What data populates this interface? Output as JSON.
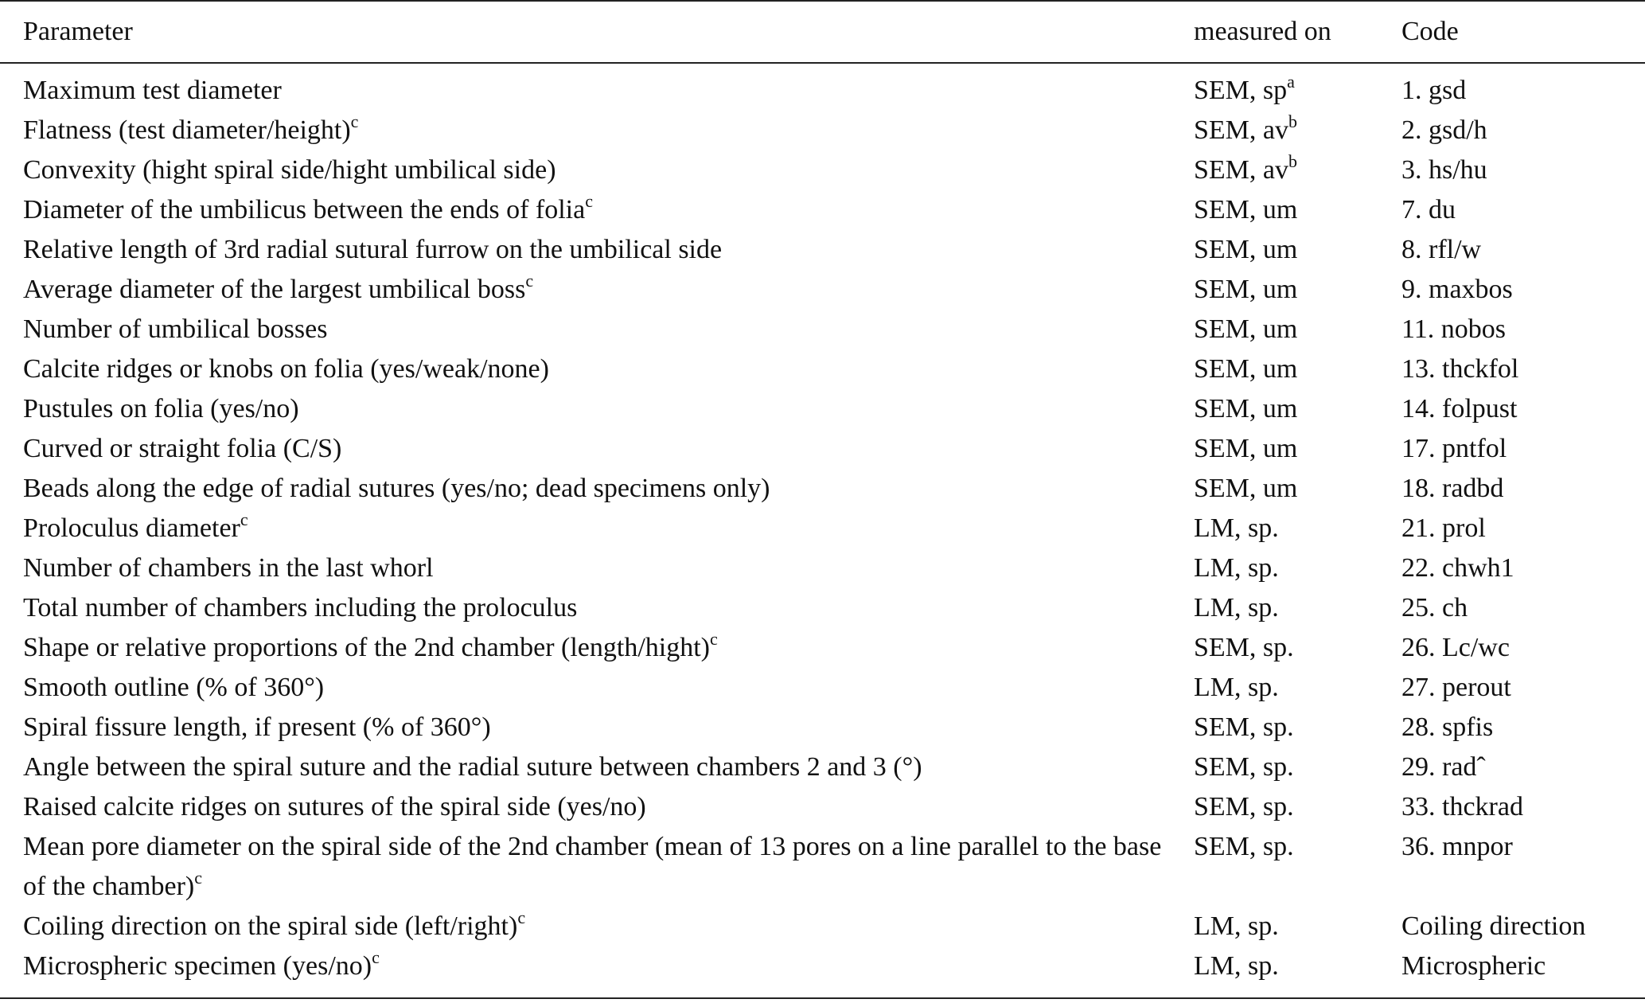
{
  "table": {
    "header": [
      "Parameter",
      "measured on",
      "Code"
    ],
    "rows": [
      {
        "parameter": "Maximum test diameter",
        "measured": "SEM, sp",
        "measured_note": "a",
        "code": "1. gsd"
      },
      {
        "parameter": "Flatness (test diameter/height)",
        "parameter_note": "c",
        "measured": "SEM, av",
        "measured_note": "b",
        "code": "2. gsd/h"
      },
      {
        "parameter": "Convexity (hight spiral side/hight umbilical side)",
        "measured": "SEM, av",
        "measured_note": "b",
        "code": "3. hs/hu"
      },
      {
        "parameter": "Diameter of the umbilicus between the ends of folia",
        "parameter_note": "c",
        "measured": "SEM, um",
        "code": "7. du"
      },
      {
        "parameter": "Relative length of 3rd radial sutural furrow on the umbilical side",
        "measured": "SEM, um",
        "code": "8. rfl/w"
      },
      {
        "parameter": "Average diameter of the largest umbilical boss",
        "parameter_note": "c",
        "measured": "SEM, um",
        "code": "9. maxbos"
      },
      {
        "parameter": "Number of umbilical bosses",
        "measured": "SEM, um",
        "code": "11. nobos"
      },
      {
        "parameter": "Calcite ridges or knobs on folia (yes/weak/none)",
        "measured": "SEM, um",
        "code": "13. thckfol"
      },
      {
        "parameter": "Pustules on folia (yes/no)",
        "measured": "SEM, um",
        "code": "14. folpust"
      },
      {
        "parameter": "Curved or straight folia (C/S)",
        "measured": "SEM, um",
        "code": "17. pntfol"
      },
      {
        "parameter": "Beads along the edge of radial sutures (yes/no; dead specimens only)",
        "measured": "SEM, um",
        "code": "18. radbd"
      },
      {
        "parameter": "Proloculus diameter",
        "parameter_note": "c",
        "measured": "LM, sp.",
        "code": "21. prol"
      },
      {
        "parameter": "Number of chambers in the last whorl",
        "measured": "LM, sp.",
        "code": "22. chwh1"
      },
      {
        "parameter": "Total number of chambers including the proloculus",
        "measured": "LM, sp.",
        "code": "25. ch"
      },
      {
        "parameter": "Shape or relative proportions of the 2nd chamber (length/hight)",
        "parameter_note": "c",
        "measured": "SEM, sp.",
        "code": "26. Lc/wc"
      },
      {
        "parameter": "Smooth outline (% of 360°)",
        "measured": "LM, sp.",
        "code": "27. perout"
      },
      {
        "parameter": "Spiral fissure length, if present (% of 360°)",
        "measured": "SEM, sp.",
        "code": "28. spfis"
      },
      {
        "parameter": "Angle between the spiral suture and the radial suture between chambers 2 and 3 (°)",
        "measured": "SEM, sp.",
        "code": "29. radˆ"
      },
      {
        "parameter": "Raised calcite ridges on sutures of the spiral side (yes/no)",
        "measured": "SEM, sp.",
        "code": "33. thckrad"
      },
      {
        "parameter": "Mean pore diameter on the spiral side of the 2nd chamber (mean of 13 pores on a line parallel to the base of the chamber)",
        "parameter_note": "c",
        "measured": "SEM, sp.",
        "code": "36. mnpor"
      },
      {
        "parameter": "Coiling direction on the spiral side (left/right)",
        "parameter_note": "c",
        "measured": "LM, sp.",
        "code": "Coiling direction"
      },
      {
        "parameter": "Microspheric specimen (yes/no)",
        "parameter_note": "c",
        "measured": "LM, sp.",
        "code": "Microspheric"
      }
    ]
  }
}
